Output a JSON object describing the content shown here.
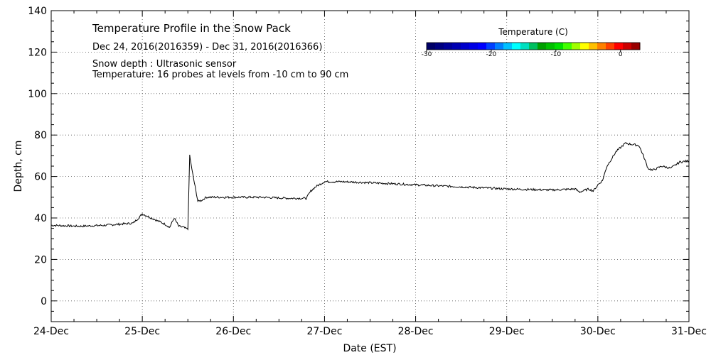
{
  "chart_data": {
    "type": "line",
    "title": "Temperature Profile in the Snow Pack",
    "subtitle": "Dec 24, 2016(2016359) - Dec 31, 2016(2016366)",
    "notes": [
      "Snow depth : Ultrasonic sensor",
      "Temperature: 16 probes at levels from -10 cm to 90 cm"
    ],
    "xlabel": "Date (EST)",
    "ylabel": "Depth, cm",
    "xlim": [
      0,
      7
    ],
    "ylim": [
      -10,
      140
    ],
    "x_ticks": [
      {
        "value": 0,
        "label": "24-Dec"
      },
      {
        "value": 1,
        "label": "25-Dec"
      },
      {
        "value": 2,
        "label": "26-Dec"
      },
      {
        "value": 3,
        "label": "27-Dec"
      },
      {
        "value": 4,
        "label": "28-Dec"
      },
      {
        "value": 5,
        "label": "29-Dec"
      },
      {
        "value": 6,
        "label": "30-Dec"
      },
      {
        "value": 7,
        "label": "31-Dec"
      }
    ],
    "y_ticks": [
      0,
      20,
      40,
      60,
      80,
      100,
      120,
      140
    ],
    "grid": true,
    "series": [
      {
        "values_x_days_since_dec24": [
          0.0,
          0.3,
          0.6,
          0.9,
          0.97,
          1.0,
          1.05,
          1.15,
          1.25,
          1.3,
          1.35,
          1.4,
          1.45,
          1.5,
          1.52,
          1.55,
          1.58,
          1.61,
          1.65,
          1.7,
          1.8,
          2.0,
          2.3,
          2.6,
          2.8,
          2.85,
          2.9,
          3.0,
          3.2,
          3.5,
          4.0,
          4.5,
          5.0,
          5.5,
          5.75,
          5.8,
          5.9,
          5.95,
          6.0,
          6.05,
          6.1,
          6.2,
          6.3,
          6.45,
          6.5,
          6.55,
          6.6,
          6.7,
          6.8,
          6.9,
          7.0
        ],
        "values": [
          36.5,
          36.0,
          36.5,
          37.5,
          40.5,
          42.0,
          41.0,
          39.0,
          37.0,
          35.5,
          40.0,
          36.0,
          35.5,
          34.5,
          70.0,
          62.0,
          55.0,
          48.0,
          48.5,
          50.0,
          50.0,
          50.0,
          50.0,
          49.5,
          49.5,
          53.0,
          55.0,
          57.5,
          57.5,
          57.0,
          56.0,
          55.0,
          54.0,
          53.5,
          54.0,
          52.5,
          54.0,
          53.0,
          56.0,
          58.0,
          65.0,
          72.0,
          76.0,
          75.0,
          70.0,
          64.0,
          63.0,
          65.0,
          64.0,
          67.0,
          67.5
        ]
      }
    ]
  },
  "colorbar": {
    "title": "Temperature (C)",
    "range": [
      -30,
      3
    ],
    "tick_labels": [
      {
        "value": -30,
        "label": "-30"
      },
      {
        "value": -20,
        "label": "-20"
      },
      {
        "value": -10,
        "label": "-10"
      },
      {
        "value": 0,
        "label": "0"
      }
    ],
    "colors": [
      "#000066",
      "#00007f",
      "#000099",
      "#0000b2",
      "#0000cc",
      "#0000e5",
      "#0000ff",
      "#0040ff",
      "#0080ff",
      "#00c0ff",
      "#00ffff",
      "#00e0c0",
      "#00c060",
      "#00a000",
      "#00c000",
      "#00e000",
      "#40ff00",
      "#a0ff00",
      "#ffff00",
      "#ffc000",
      "#ff8000",
      "#ff4000",
      "#ff0000",
      "#cc0000",
      "#990000"
    ]
  }
}
